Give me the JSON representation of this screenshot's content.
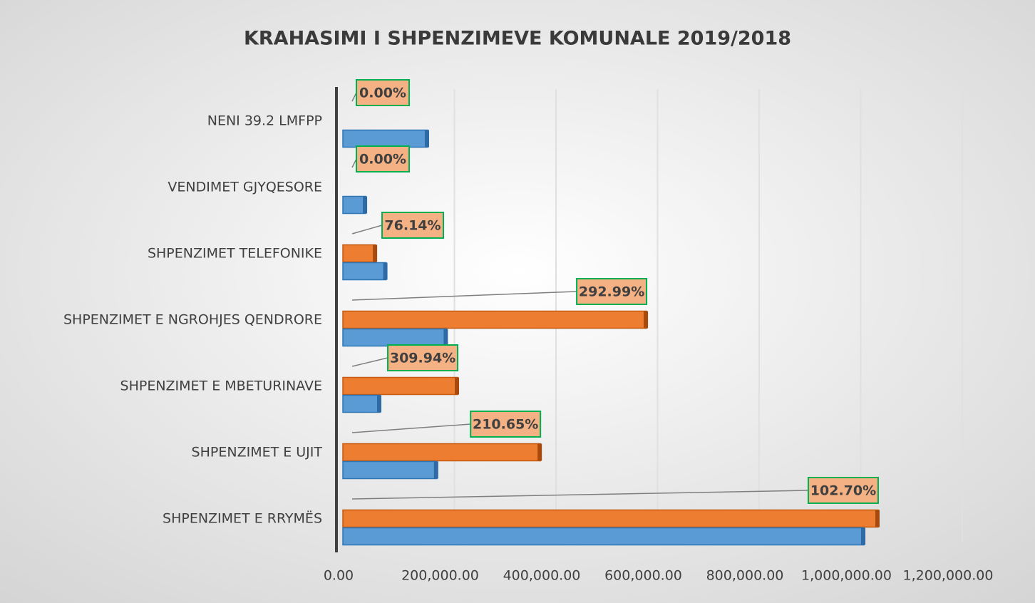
{
  "chart_data": {
    "type": "hbar",
    "title": "KRAHASIMI I SHPENZIMEVE KOMUNALE 2019/2018",
    "categories": [
      "NENI 39.2 LMFPP",
      "VENDIMET GJYQESORE",
      "SHPENZIMET TELEFONIKE",
      "SHPENZIMET E NGROHJES QENDRORE",
      "SHPENZIMET E MBETURINAVE",
      "SHPENZIMET E UJIT",
      "SHPENZIMET E RRYMËS"
    ],
    "series": [
      {
        "color": "#ed7d31",
        "values": [
          0,
          0,
          64700,
          598000,
          226000,
          389000,
          1054000
        ],
        "point_labels": [
          "0.00%",
          "0.00%",
          "76.14%",
          "292.99%",
          "309.94%",
          "210.65%",
          "102.70%"
        ]
      },
      {
        "color": "#5b9bd5",
        "values": [
          167000,
          45000,
          85000,
          204000,
          73000,
          185000,
          1026000
        ]
      }
    ],
    "xlim": [
      0,
      1200000
    ],
    "xticks": [
      {
        "value": 0,
        "label": "0.00"
      },
      {
        "value": 200000,
        "label": "200,000.00"
      },
      {
        "value": 400000,
        "label": "400,000.00"
      },
      {
        "value": 600000,
        "label": "600,000.00"
      },
      {
        "value": 800000,
        "label": "800,000.00"
      },
      {
        "value": 1000000,
        "label": "1,000,000.00"
      },
      {
        "value": 1200000,
        "label": "1,200,000.00"
      }
    ],
    "grid": true
  }
}
